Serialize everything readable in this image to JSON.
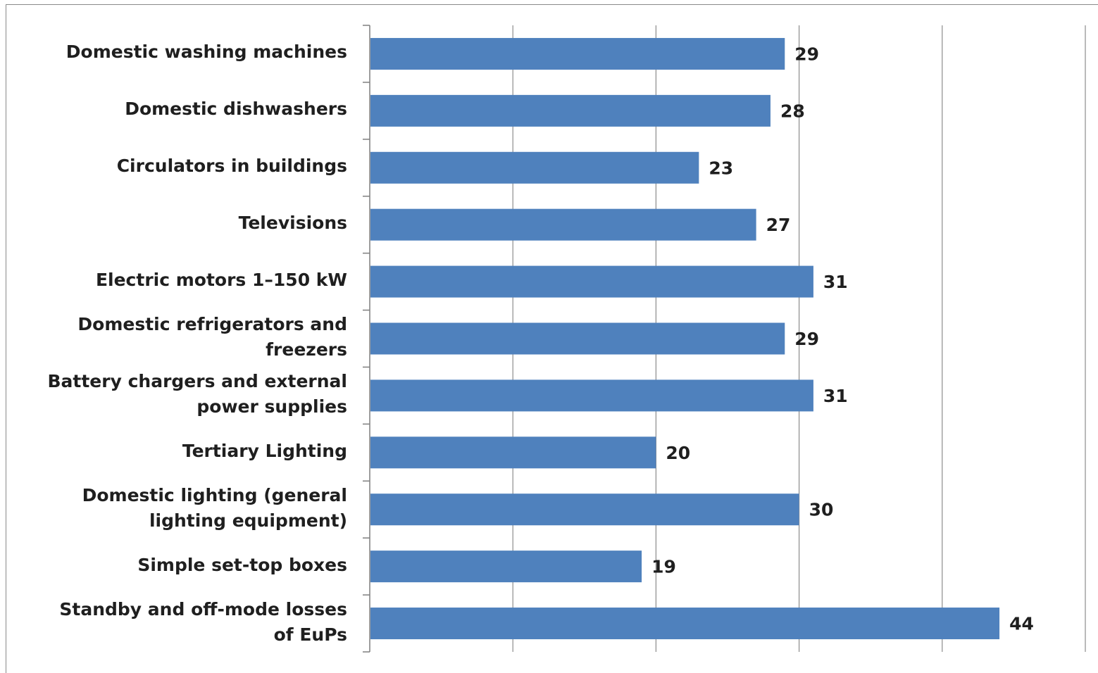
{
  "chart_data": {
    "type": "bar",
    "orientation": "horizontal",
    "categories": [
      "Domestic washing machines",
      "Domestic dishwashers",
      "Circulators in buildings",
      "Televisions",
      "Electric motors 1–150 kW",
      "Domestic refrigerators and\nfreezers",
      "Battery chargers and external\npower supplies",
      "Tertiary Lighting",
      "Domestic lighting (general\nlighting equipment)",
      "Simple set-top boxes",
      "Standby and off-mode losses\nof EuPs"
    ],
    "values": [
      29,
      28,
      23,
      27,
      31,
      29,
      31,
      20,
      30,
      19,
      44
    ],
    "value_labels": [
      "29",
      "28",
      "23",
      "27",
      "31",
      "29",
      "31",
      "20",
      "30",
      "19",
      "44"
    ],
    "xlim": [
      0,
      50
    ],
    "grid": "vertical",
    "bar_color": "#4f81bd",
    "title": "",
    "xlabel": "",
    "ylabel": ""
  }
}
